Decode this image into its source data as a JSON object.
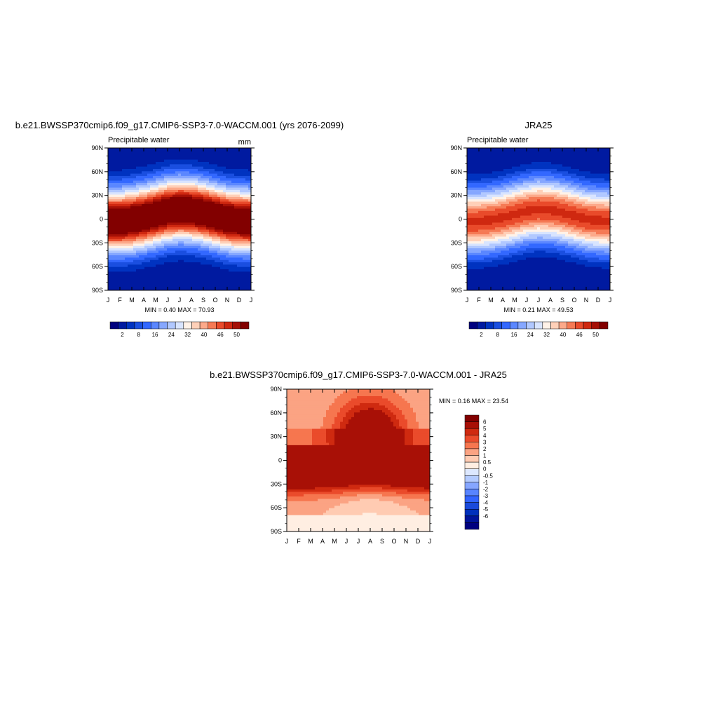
{
  "page": {
    "panels": [
      {
        "title": "b.e21.BWSSP370cmip6.f09_g17.CMIP6-SSP3-7.0-WACCM.001 (yrs 2076-2099)",
        "left_label": "Precipitable water",
        "right_label": "mm",
        "minmax": "MIN =   0.40 MAX =  70.93"
      },
      {
        "title": "JRA25",
        "left_label": "Precipitable water",
        "right_label": "",
        "minmax": "MIN =   0.21 MAX =  49.53"
      },
      {
        "title": "b.e21.BWSSP370cmip6.f09_g17.CMIP6-SSP3-7.0-WACCM.001 - JRA25",
        "left_label": "",
        "right_label": "",
        "minmax": "MIN =   0.16 MAX =  23.54"
      }
    ],
    "colorbar_abs": {
      "colors": [
        "#00007f",
        "#001aa0",
        "#0033c0",
        "#1a4fe0",
        "#3368ff",
        "#5b87ff",
        "#86a7ff",
        "#b1c8ff",
        "#d8e4ff",
        "#fff2e8",
        "#ffd0b8",
        "#fca98a",
        "#f57a55",
        "#e94b2b",
        "#cf2810",
        "#a51006",
        "#820000"
      ],
      "labels": [
        "2",
        "8",
        "16",
        "24",
        "32",
        "40",
        "46",
        "50"
      ]
    },
    "colorbar_diff": {
      "colors": [
        "#820000",
        "#a81006",
        "#cf2a10",
        "#ea4b2b",
        "#f6764f",
        "#fba383",
        "#ffcbb2",
        "#ffeee2",
        "#dde8ff",
        "#b4cbff",
        "#86a6ff",
        "#5884ff",
        "#3264ff",
        "#1a4adb",
        "#0030bc",
        "#00149a",
        "#00007f"
      ],
      "labels": [
        "6",
        "5",
        "4",
        "3",
        "2",
        "1",
        "0.5",
        "0",
        "-0.5",
        "-1",
        "-2",
        "-3",
        "-4",
        "-5",
        "-6"
      ]
    }
  },
  "chart_data": [
    {
      "type": "heatmap",
      "title": "b.e21.BWSSP370cmip6.f09_g17.CMIP6-SSP3-7.0-WACCM.001 (yrs 2076-2099)",
      "variable": "Precipitable water",
      "units": "mm",
      "x": [
        "J",
        "F",
        "M",
        "A",
        "M",
        "J",
        "J",
        "A",
        "S",
        "O",
        "N",
        "D",
        "J"
      ],
      "y_ticks": [
        "90N",
        "60N",
        "30N",
        "0",
        "30S",
        "60S",
        "90S"
      ],
      "ylim": [
        -90,
        90
      ],
      "min": 0.4,
      "max": 70.93,
      "approx_peak_latitude_by_month": [
        -3,
        -3,
        -1,
        2,
        6,
        10,
        12,
        11,
        8,
        4,
        0,
        -2,
        -3
      ],
      "approx_equatorial_value": 55
    },
    {
      "type": "heatmap",
      "title": "JRA25",
      "variable": "Precipitable water",
      "x": [
        "J",
        "F",
        "M",
        "A",
        "M",
        "J",
        "J",
        "A",
        "S",
        "O",
        "N",
        "D",
        "J"
      ],
      "y_ticks": [
        "90N",
        "60N",
        "30N",
        "0",
        "30S",
        "60S",
        "90S"
      ],
      "ylim": [
        -90,
        90
      ],
      "min": 0.21,
      "max": 49.53,
      "approx_peak_latitude_by_month": [
        -3,
        -3,
        -1,
        2,
        6,
        10,
        12,
        11,
        8,
        4,
        0,
        -2,
        -3
      ],
      "approx_equatorial_value": 44
    },
    {
      "type": "heatmap",
      "title": "b.e21.BWSSP370cmip6.f09_g17.CMIP6-SSP3-7.0-WACCM.001 - JRA25",
      "x": [
        "J",
        "F",
        "M",
        "A",
        "M",
        "J",
        "J",
        "A",
        "S",
        "O",
        "N",
        "D",
        "J"
      ],
      "y_ticks": [
        "90N",
        "60N",
        "30N",
        "0",
        "30S",
        "60S",
        "90S"
      ],
      "ylim": [
        -90,
        90
      ],
      "min": 0.16,
      "max": 23.54,
      "contour_levels": [
        -6,
        -5,
        -4,
        -3,
        -2,
        -1,
        -0.5,
        0,
        0.5,
        1,
        2,
        3,
        4,
        5,
        6
      ]
    }
  ]
}
